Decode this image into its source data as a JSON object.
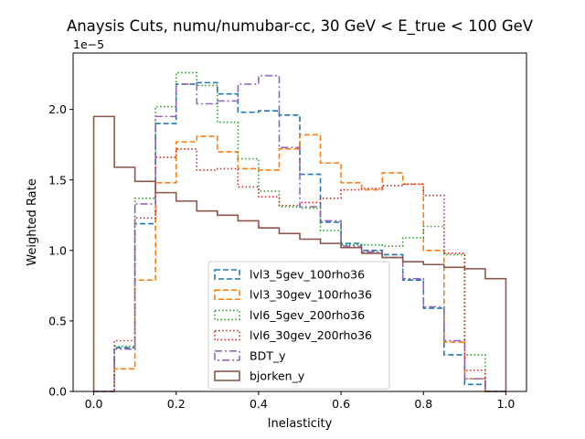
{
  "chart_data": {
    "type": "histogram-step",
    "title": "Anaysis Cuts, numu/numubar-cc, 30 GeV < E_true < 100 GeV",
    "xlabel": "Inelasticity",
    "ylabel": "Weighted Rate",
    "y_offset_label": "1e−5",
    "xlim": [
      -0.05,
      1.05
    ],
    "ylim": [
      0,
      2.4
    ],
    "x_ticks": [
      0.0,
      0.2,
      0.4,
      0.6,
      0.8,
      1.0
    ],
    "x_tick_labels": [
      "0.0",
      "0.2",
      "0.4",
      "0.6",
      "0.8",
      "1.0"
    ],
    "y_ticks": [
      0.0,
      0.5,
      1.0,
      1.5,
      2.0
    ],
    "y_tick_labels": [
      "0.0",
      "0.5",
      "1.0",
      "1.5",
      "2.0"
    ],
    "grid": false,
    "legend_position": "lower-center",
    "bin_edges": [
      0.0,
      0.05,
      0.1,
      0.15,
      0.2,
      0.25,
      0.3,
      0.35,
      0.4,
      0.45,
      0.5,
      0.55,
      0.6,
      0.65,
      0.7,
      0.75,
      0.8,
      0.85,
      0.9,
      0.95,
      1.0
    ],
    "series": [
      {
        "name": "lvl3_5gev_100rho36",
        "color": "#1f77b4",
        "dash": "6,3",
        "values": [
          0.0,
          0.31,
          1.19,
          1.9,
          2.18,
          2.19,
          2.11,
          1.98,
          1.99,
          1.96,
          1.54,
          1.2,
          1.05,
          1.0,
          0.97,
          0.79,
          0.59,
          0.26,
          0.05,
          0.0
        ]
      },
      {
        "name": "lvl3_30gev_100rho36",
        "color": "#ff7f0e",
        "dash": "6,3",
        "values": [
          0.0,
          0.16,
          0.79,
          1.48,
          1.77,
          1.81,
          1.7,
          1.58,
          1.57,
          1.72,
          1.82,
          1.62,
          1.48,
          1.43,
          1.55,
          1.47,
          1.0,
          0.35,
          0.09,
          0.0
        ]
      },
      {
        "name": "lvl6_5gev_200rho36",
        "color": "#2ca02c",
        "dash": "1.5,2.5",
        "values": [
          0.0,
          0.32,
          1.37,
          2.02,
          2.26,
          2.17,
          1.91,
          1.65,
          1.42,
          1.31,
          1.3,
          1.14,
          1.04,
          1.04,
          1.03,
          1.09,
          1.17,
          0.97,
          0.26,
          0.0
        ]
      },
      {
        "name": "lvl6_30gev_200rho36",
        "color": "#d62728",
        "dash": "1.5,2.5",
        "values": [
          0.0,
          0.36,
          1.23,
          1.66,
          1.72,
          1.57,
          1.58,
          1.45,
          1.38,
          1.32,
          1.34,
          1.37,
          1.43,
          1.44,
          1.46,
          1.47,
          1.39,
          0.98,
          0.15,
          0.0
        ]
      },
      {
        "name": "BDT_y",
        "color": "#9467bd",
        "dash": "8,3,2,3",
        "values": [
          0.0,
          0.3,
          1.33,
          1.95,
          2.18,
          2.04,
          2.06,
          2.18,
          2.24,
          1.73,
          1.31,
          1.21,
          1.03,
          0.99,
          0.95,
          0.8,
          0.6,
          0.36,
          0.09,
          0.0
        ]
      },
      {
        "name": "bjorken_y",
        "color": "#8c564b",
        "dash": "",
        "values": [
          1.95,
          1.59,
          1.49,
          1.41,
          1.35,
          1.28,
          1.25,
          1.21,
          1.16,
          1.12,
          1.08,
          1.05,
          1.02,
          0.98,
          0.95,
          0.92,
          0.9,
          0.88,
          0.87,
          0.8
        ]
      }
    ]
  }
}
